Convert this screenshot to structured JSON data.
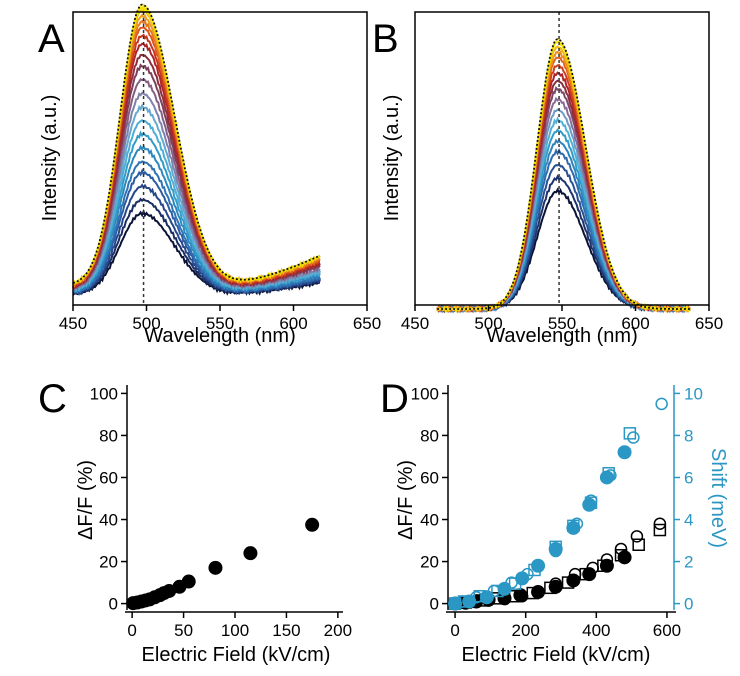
{
  "colors": {
    "axis": "#000000",
    "accent_blue": "#2a97c4",
    "black_marker": "#000000",
    "dashed_line": "#333333",
    "envelope": "#f1e000",
    "spectra_gradient": [
      "#0b1436",
      "#27458a",
      "#2f6fb3",
      "#2a97c4",
      "#5cb9de",
      "#8a6d9a",
      "#7a3348",
      "#b82222",
      "#e05a1a",
      "#f0a020",
      "#f1e000"
    ]
  },
  "chart_data": [
    {
      "panel": "A",
      "type": "line",
      "xlabel": "Wavelength (nm)",
      "ylabel": "Intensity (a.u.)",
      "xlim": [
        450,
        650
      ],
      "xticks": [
        450,
        500,
        550,
        600,
        650
      ],
      "x_tick_labels": [
        "450",
        "500",
        "550",
        "600",
        "650"
      ],
      "peak_marker_x": 498,
      "spectrum_range": [
        450,
        618
      ],
      "peak_center": 497,
      "peak_width_left": 15,
      "peak_width_right": 22,
      "tail_rise_start": 548,
      "series_peak_heights": [
        0.31,
        0.36,
        0.41,
        0.46,
        0.5,
        0.55,
        0.6,
        0.65,
        0.7,
        0.75,
        0.8,
        0.85,
        0.89,
        0.93,
        0.96,
        0.99,
        1.01,
        1.03,
        1.05,
        1.06
      ],
      "series_tail_heights": [
        0.07,
        0.075,
        0.08,
        0.085,
        0.09,
        0.1,
        0.105,
        0.11,
        0.115,
        0.12,
        0.13,
        0.135,
        0.14,
        0.145,
        0.15,
        0.155,
        0.16,
        0.165,
        0.17,
        0.17
      ]
    },
    {
      "panel": "B",
      "type": "line",
      "xlabel": "Wavelength (nm)",
      "ylabel": "Intensity (a.u.)",
      "xlim": [
        450,
        650
      ],
      "xticks": [
        450,
        500,
        550,
        600,
        650
      ],
      "x_tick_labels": [
        "450",
        "500",
        "550",
        "600",
        "650"
      ],
      "peak_marker_x": 548,
      "spectrum_range": [
        465,
        637
      ],
      "peak_center": 547,
      "peak_width_left": 14,
      "peak_width_right": 19,
      "series_peak_heights": [
        0.45,
        0.5,
        0.55,
        0.6,
        0.64,
        0.68,
        0.72,
        0.76,
        0.8,
        0.84,
        0.87,
        0.9,
        0.93,
        0.96,
        0.98,
        1.0,
        1.02
      ]
    },
    {
      "panel": "C",
      "type": "scatter",
      "xlabel": "Electric Field (kV/cm)",
      "ylabel": "ΔF/F (%)",
      "xlim": [
        -5,
        205
      ],
      "ylim": [
        -4,
        104
      ],
      "xticks": [
        0,
        50,
        100,
        150,
        200
      ],
      "x_tick_labels": [
        "0",
        "50",
        "100",
        "150",
        "200"
      ],
      "yticks": [
        0,
        20,
        40,
        60,
        80,
        100
      ],
      "y_tick_labels": [
        "0",
        "20",
        "40",
        "60",
        "80",
        "100"
      ],
      "series": [
        {
          "marker": "filled-circle",
          "color": "#000000",
          "x": [
            1,
            5,
            9,
            13,
            17,
            22,
            27,
            31,
            36,
            46,
            55,
            81,
            115,
            175
          ],
          "y": [
            0.2,
            0.5,
            1,
            1.5,
            2,
            3,
            4,
            5,
            6,
            8,
            10.5,
            17,
            24,
            37.5
          ]
        }
      ]
    },
    {
      "panel": "D",
      "type": "scatter",
      "xlabel": "Electric Field (kV/cm)",
      "ylabel": "ΔF/F (%)",
      "ylabel_right": "Shift (meV)",
      "xlim": [
        -20,
        620
      ],
      "ylim": [
        -4,
        104
      ],
      "ylim_right": [
        -0.4,
        10.4
      ],
      "xticks": [
        0,
        200,
        400,
        600
      ],
      "x_tick_labels": [
        "0",
        "200",
        "400",
        "600"
      ],
      "yticks": [
        0,
        20,
        40,
        60,
        80,
        100
      ],
      "y_tick_labels": [
        "0",
        "20",
        "40",
        "60",
        "80",
        "100"
      ],
      "yticks_right": [
        0,
        2,
        4,
        6,
        8,
        10
      ],
      "y_tick_labels_right": [
        "0",
        "2",
        "4",
        "6",
        "8",
        "10"
      ],
      "series": [
        {
          "axis": "left",
          "marker": "filled-circle",
          "color": "#000000",
          "x": [
            0,
            30,
            60,
            95,
            140,
            185,
            235,
            285,
            335,
            380,
            430,
            480
          ],
          "y": [
            0,
            0.4,
            1,
            1.8,
            2.5,
            4,
            5.5,
            8,
            11,
            14,
            18,
            22
          ]
        },
        {
          "axis": "left",
          "marker": "open-circle",
          "color": "#000000",
          "x": [
            0,
            45,
            95,
            140,
            190,
            235,
            285,
            340,
            390,
            430,
            470,
            515,
            580
          ],
          "y": [
            0,
            0.7,
            1.5,
            2.5,
            3.5,
            5.5,
            9.5,
            14,
            17,
            21,
            26,
            32,
            38
          ]
        },
        {
          "axis": "left",
          "marker": "open-square",
          "color": "#000000",
          "x": [
            0,
            30,
            75,
            120,
            170,
            220,
            270,
            320,
            370,
            420,
            470,
            520,
            580
          ],
          "y": [
            0,
            0.5,
            1.5,
            2.5,
            3.5,
            5,
            7.5,
            10,
            14,
            18,
            23,
            28,
            35
          ]
        },
        {
          "axis": "right",
          "marker": "filled-circle",
          "color": "#2a97c4",
          "x": [
            0,
            40,
            90,
            140,
            190,
            235,
            285,
            335,
            380,
            430,
            480
          ],
          "y": [
            0,
            0.1,
            0.3,
            0.7,
            1.2,
            1.8,
            2.6,
            3.6,
            4.7,
            6,
            7.2
          ]
        },
        {
          "axis": "right",
          "marker": "open-circle",
          "color": "#2a97c4",
          "x": [
            0,
            20,
            60,
            110,
            160,
            205,
            235,
            285,
            345,
            385,
            440,
            505,
            585
          ],
          "y": [
            0,
            0.1,
            0.3,
            0.6,
            1,
            1.4,
            1.8,
            2.5,
            3.8,
            4.9,
            6.1,
            7.9,
            9.5
          ]
        },
        {
          "axis": "right",
          "marker": "open-square",
          "color": "#2a97c4",
          "x": [
            0,
            25,
            70,
            120,
            170,
            225,
            285,
            335,
            385,
            435,
            495
          ],
          "y": [
            0,
            0.1,
            0.35,
            0.6,
            0.95,
            1.6,
            2.7,
            3.7,
            4.8,
            6.2,
            8.1
          ]
        }
      ]
    }
  ],
  "panel_labels": [
    "A",
    "B",
    "C",
    "D"
  ]
}
